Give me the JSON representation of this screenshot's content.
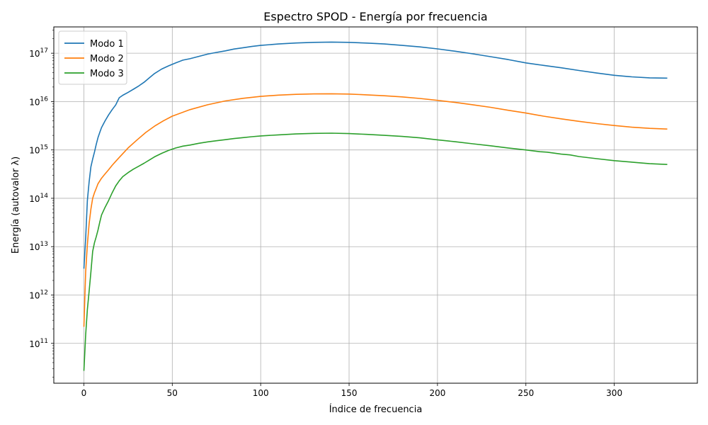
{
  "chart_data": {
    "type": "line",
    "title": "Espectro SPOD - Energía por frecuencia",
    "xlabel": "Índice de frecuencia",
    "ylabel": "Energía (autovalor λ)",
    "yscale": "log",
    "xlim": [
      -17,
      347
    ],
    "ylim": [
      15000000000.0,
      3.5e+17
    ],
    "xticks": [
      0,
      50,
      100,
      150,
      200,
      250,
      300
    ],
    "xtick_labels": [
      "0",
      "50",
      "100",
      "150",
      "200",
      "250",
      "300"
    ],
    "yticks": [
      100000000000.0,
      1000000000000.0,
      10000000000000.0,
      100000000000000.0,
      1000000000000000.0,
      1e+16,
      1e+17
    ],
    "ytick_labels": [
      {
        "base": "10",
        "exp": "11"
      },
      {
        "base": "10",
        "exp": "12"
      },
      {
        "base": "10",
        "exp": "13"
      },
      {
        "base": "10",
        "exp": "14"
      },
      {
        "base": "10",
        "exp": "15"
      },
      {
        "base": "10",
        "exp": "16"
      },
      {
        "base": "10",
        "exp": "17"
      }
    ],
    "grid": true,
    "legend_position": "upper-left",
    "series": [
      {
        "name": "Modo 1",
        "color": "#1f77b4",
        "x": [
          0,
          1,
          2,
          3,
          4,
          5,
          6,
          7,
          8,
          9,
          10,
          12,
          14,
          16,
          18,
          20,
          22,
          25,
          28,
          31,
          34,
          37,
          40,
          44,
          48,
          52,
          56,
          60,
          65,
          70,
          75,
          80,
          85,
          90,
          95,
          100,
          110,
          120,
          130,
          140,
          150,
          160,
          170,
          180,
          190,
          200,
          210,
          220,
          230,
          240,
          250,
          260,
          270,
          280,
          290,
          300,
          310,
          320,
          330
        ],
        "y": [
          3500000000000.0,
          15000000000000.0,
          90000000000000.0,
          220000000000000.0,
          450000000000000.0,
          650000000000000.0,
          900000000000000.0,
          1300000000000000.0,
          1800000000000000.0,
          2300000000000000.0,
          2900000000000000.0,
          4000000000000000.0,
          5300000000000000.0,
          6800000000000000.0,
          8500000000000000.0,
          1.2e+16,
          1.35e+16,
          1.55e+16,
          1.8e+16,
          2.1e+16,
          2.5e+16,
          3.1e+16,
          3.8e+16,
          4.7e+16,
          5.5e+16,
          6.3e+16,
          7.2e+16,
          7.7e+16,
          8.6e+16,
          9.6e+16,
          1.04e+17,
          1.12e+17,
          1.22e+17,
          1.3e+17,
          1.38e+17,
          1.45e+17,
          1.55e+17,
          1.63e+17,
          1.68e+17,
          1.7e+17,
          1.68e+17,
          1.62e+17,
          1.55e+17,
          1.45e+17,
          1.35e+17,
          1.23e+17,
          1.1e+17,
          9.7e+16,
          8.5e+16,
          7.4e+16,
          6.3e+16,
          5.6e+16,
          5e+16,
          4.4e+16,
          3.9e+16,
          3.5e+16,
          3.25e+16,
          3.1e+16,
          3.05e+16
        ]
      },
      {
        "name": "Modo 2",
        "color": "#ff7f0e",
        "x": [
          0,
          1,
          2,
          3,
          4,
          5,
          6,
          7,
          8,
          10,
          12,
          14,
          16,
          18,
          20,
          25,
          30,
          35,
          40,
          45,
          50,
          60,
          70,
          80,
          90,
          100,
          110,
          120,
          130,
          140,
          150,
          160,
          170,
          180,
          190,
          200,
          210,
          220,
          230,
          240,
          250,
          260,
          270,
          280,
          290,
          300,
          310,
          320,
          330
        ],
        "y": [
          220000000000.0,
          3000000000000.0,
          11000000000000.0,
          30000000000000.0,
          60000000000000.0,
          100000000000000.0,
          130000000000000.0,
          160000000000000.0,
          200000000000000.0,
          260000000000000.0,
          320000000000000.0,
          390000000000000.0,
          480000000000000.0,
          580000000000000.0,
          700000000000000.0,
          1100000000000000.0,
          1600000000000000.0,
          2300000000000000.0,
          3100000000000000.0,
          4000000000000000.0,
          5000000000000000.0,
          6800000000000000.0,
          8600000000000000.0,
          1.03e+16,
          1.17e+16,
          1.28e+16,
          1.36e+16,
          1.41e+16,
          1.44e+16,
          1.45e+16,
          1.43e+16,
          1.38e+16,
          1.32e+16,
          1.25e+16,
          1.16e+16,
          1.06e+16,
          9600000000000000.0,
          8600000000000000.0,
          7600000000000000.0,
          6600000000000000.0,
          5800000000000000.0,
          5000000000000000.0,
          4400000000000000.0,
          3900000000000000.0,
          3500000000000000.0,
          3200000000000000.0,
          2950000000000000.0,
          2800000000000000.0,
          2700000000000000.0
        ]
      },
      {
        "name": "Modo 3",
        "color": "#2ca02c",
        "x": [
          0,
          1,
          2,
          3,
          4,
          5,
          6,
          7,
          8,
          9,
          10,
          12,
          14,
          16,
          18,
          20,
          22,
          25,
          28,
          31,
          34,
          37,
          40,
          44,
          48,
          52,
          56,
          60,
          65,
          70,
          75,
          80,
          85,
          90,
          95,
          100,
          110,
          120,
          130,
          140,
          150,
          160,
          170,
          180,
          190,
          200,
          210,
          220,
          230,
          240,
          250,
          258,
          262,
          270,
          275,
          280,
          290,
          300,
          310,
          320,
          330
        ],
        "y": [
          27000000000.0,
          150000000000.0,
          500000000000.0,
          1200000000000.0,
          3000000000000.0,
          8000000000000.0,
          12000000000000.0,
          16000000000000.0,
          22000000000000.0,
          32000000000000.0,
          45000000000000.0,
          65000000000000.0,
          90000000000000.0,
          130000000000000.0,
          180000000000000.0,
          230000000000000.0,
          280000000000000.0,
          340000000000000.0,
          400000000000000.0,
          460000000000000.0,
          530000000000000.0,
          620000000000000.0,
          720000000000000.0,
          850000000000000.0,
          980000000000000.0,
          1100000000000000.0,
          1200000000000000.0,
          1260000000000000.0,
          1370000000000000.0,
          1470000000000000.0,
          1550000000000000.0,
          1630000000000000.0,
          1720000000000000.0,
          1800000000000000.0,
          1880000000000000.0,
          1950000000000000.0,
          2050000000000000.0,
          2140000000000000.0,
          2200000000000000.0,
          2220000000000000.0,
          2180000000000000.0,
          2100000000000000.0,
          2000000000000000.0,
          1900000000000000.0,
          1780000000000000.0,
          1620000000000000.0,
          1480000000000000.0,
          1340000000000000.0,
          1220000000000000.0,
          1100000000000000.0,
          1000000000000000.0,
          920000000000000.0,
          900000000000000.0,
          820000000000000.0,
          790000000000000.0,
          730000000000000.0,
          660000000000000.0,
          600000000000000.0,
          560000000000000.0,
          520000000000000.0,
          500000000000000.0
        ]
      }
    ]
  }
}
